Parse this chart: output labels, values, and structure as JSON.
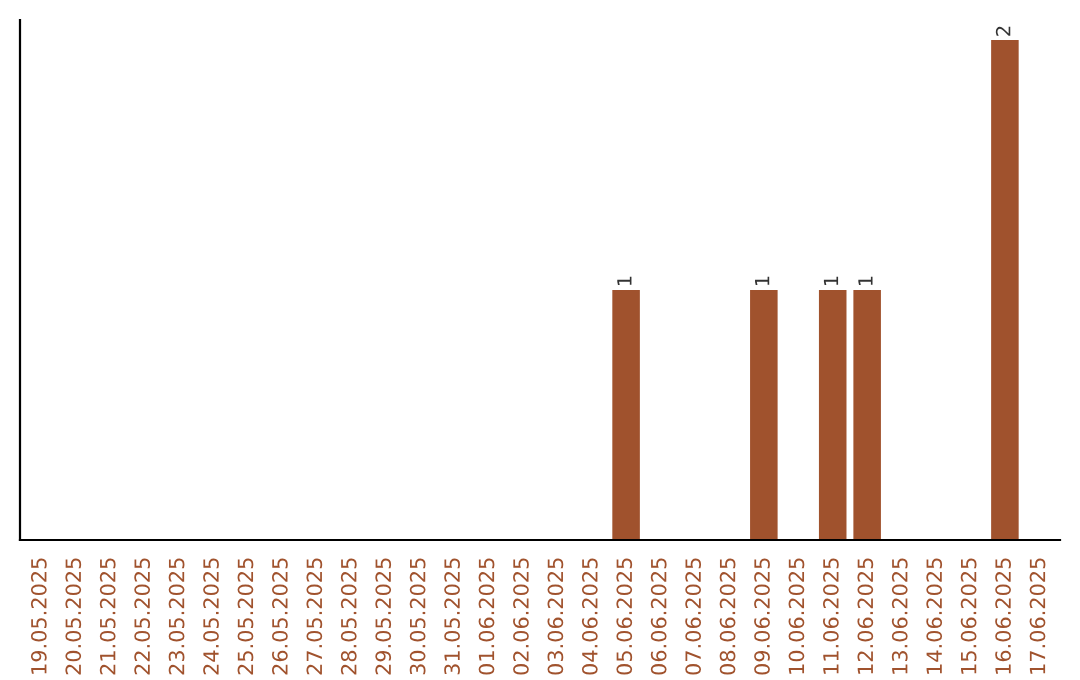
{
  "chart_data": {
    "type": "bar",
    "categories": [
      "19.05.2025",
      "20.05.2025",
      "21.05.2025",
      "22.05.2025",
      "23.05.2025",
      "24.05.2025",
      "25.05.2025",
      "26.05.2025",
      "27.05.2025",
      "28.05.2025",
      "29.05.2025",
      "30.05.2025",
      "31.05.2025",
      "01.06.2025",
      "02.06.2025",
      "03.06.2025",
      "04.06.2025",
      "05.06.2025",
      "06.06.2025",
      "07.06.2025",
      "08.06.2025",
      "09.06.2025",
      "10.06.2025",
      "11.06.2025",
      "12.06.2025",
      "13.06.2025",
      "14.06.2025",
      "15.06.2025",
      "16.06.2025",
      "17.06.2025"
    ],
    "values": [
      null,
      null,
      null,
      null,
      null,
      null,
      null,
      null,
      null,
      null,
      null,
      null,
      null,
      null,
      null,
      null,
      null,
      1,
      null,
      null,
      null,
      1,
      null,
      1,
      1,
      null,
      null,
      null,
      2,
      null
    ],
    "value_labels": [
      null,
      null,
      null,
      null,
      null,
      null,
      null,
      null,
      null,
      null,
      null,
      null,
      null,
      null,
      null,
      null,
      null,
      "1",
      null,
      null,
      null,
      "1",
      null,
      "1",
      "1",
      null,
      null,
      null,
      "2",
      null
    ],
    "color": "#a0522d",
    "tick_labels": "x",
    "grid": false,
    "legend": false
  }
}
